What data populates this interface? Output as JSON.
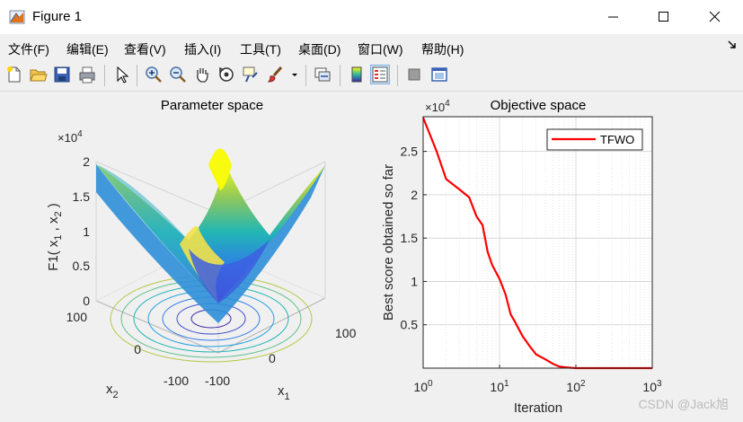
{
  "window": {
    "title": "Figure 1",
    "icon": "matlab-figure-icon",
    "controls": [
      "minimize-icon",
      "maximize-icon",
      "close-icon"
    ]
  },
  "menu": {
    "items": [
      "文件(F)",
      "编辑(E)",
      "查看(V)",
      "插入(I)",
      "工具(T)",
      "桌面(D)",
      "窗口(W)",
      "帮助(H)"
    ],
    "overflow_icon": "menu-arrow-icon"
  },
  "toolbar": {
    "icons": [
      "new-figure-icon",
      "open-file-icon",
      "save-icon",
      "print-icon",
      "select-arrow-icon",
      "zoom-in-icon",
      "zoom-out-icon",
      "pan-hand-icon",
      "rotate-3d-icon",
      "data-cursor-icon",
      "brush-icon",
      "brush-dropdown-icon",
      "link-plot-icon",
      "colorbar-icon",
      "legend-icon",
      "hide-plot-tools-icon",
      "show-plot-tools-icon"
    ],
    "active": "legend-icon"
  },
  "chart_data": [
    {
      "type": "surface",
      "title": "Parameter space",
      "function": "F1 = x1^2 + x2^2 (surface with contour projection)",
      "xlabel": "x_1",
      "ylabel": "x_2",
      "zlabel": "F1( x_1 , x_2 )",
      "exponent_label": "×10^4",
      "x_range": [
        -100,
        100
      ],
      "y_range": [
        -100,
        100
      ],
      "z_range": [
        0,
        20000
      ],
      "x_ticks": [
        "-100",
        "0",
        "100"
      ],
      "y_ticks": [
        "-100",
        "0",
        "100"
      ],
      "z_ticks": [
        "0",
        "0.5",
        "1",
        "1.5",
        "2"
      ],
      "colormap": "parula",
      "colors": {
        "low": "#3e26a8",
        "mid": "#2db7a0",
        "high": "#f9fb0e"
      }
    },
    {
      "type": "line",
      "title": "Objective space",
      "xlabel": "Iteration",
      "ylabel": "Best score obtained so far",
      "exponent_label": "×10^4",
      "x_scale": "log",
      "xlim": [
        1,
        1000
      ],
      "ylim": [
        0,
        29000
      ],
      "x_ticks": [
        "10^0",
        "10^1",
        "10^2",
        "10^3"
      ],
      "y_ticks": [
        "0.5",
        "1",
        "1.5",
        "2",
        "2.5"
      ],
      "grid": "on",
      "legend_location": "northeast",
      "series": [
        {
          "name": "TFWO",
          "color": "#ff0000",
          "x": [
            1,
            1.5,
            2,
            3,
            4,
            5,
            6,
            7,
            8,
            10,
            12,
            14,
            16,
            20,
            25,
            30,
            40,
            50,
            60,
            70,
            100,
            200,
            500,
            1000
          ],
          "y": [
            28900,
            25000,
            21800,
            20600,
            19700,
            17500,
            16500,
            13400,
            11900,
            10300,
            8500,
            6200,
            5300,
            3700,
            2500,
            1600,
            1000,
            500,
            200,
            100,
            0,
            0,
            0,
            0
          ]
        }
      ]
    }
  ],
  "watermark": "CSDN @Jack旭"
}
